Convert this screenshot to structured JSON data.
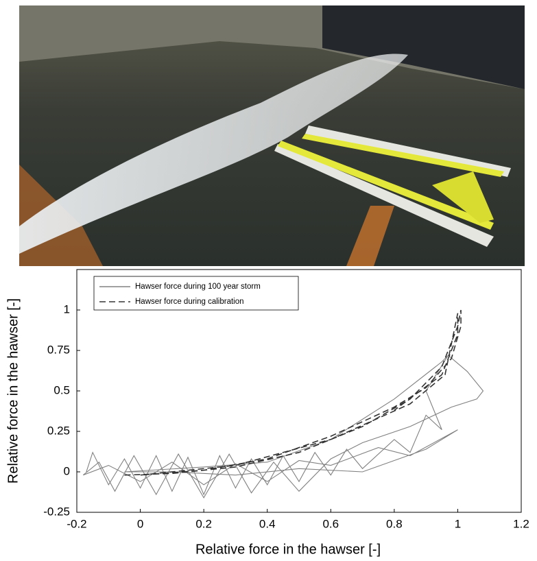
{
  "chart_data": {
    "type": "line",
    "xlabel": "Relative force in the hawser [-]",
    "ylabel": "Relative force in the hawser [-]",
    "xlim": [
      -0.2,
      1.2
    ],
    "ylim": [
      -0.25,
      1.25
    ],
    "xticks": [
      -0.2,
      0,
      0.2,
      0.4,
      0.6,
      0.8,
      1,
      1.2
    ],
    "yticks": [
      -0.25,
      0,
      0.25,
      0.5,
      0.75,
      1
    ],
    "legend": "upper left",
    "series": [
      {
        "name": "Hawser force during 100 year storm",
        "color": "#808080",
        "dash": false,
        "x": [
          -0.17,
          -0.15,
          -0.1,
          -0.05,
          0.0,
          0.05,
          0.1,
          0.15,
          0.2,
          0.25,
          0.3,
          0.35,
          0.4,
          0.45,
          0.5,
          0.55,
          0.6,
          0.65,
          0.7,
          0.8,
          0.85,
          0.9,
          0.95,
          0.9,
          0.97,
          1.03,
          1.08,
          1.06,
          0.98,
          0.85,
          0.7,
          0.6,
          0.5,
          0.42,
          0.35,
          0.28,
          0.2,
          0.12,
          0.05,
          -0.02,
          -0.08,
          -0.13,
          -0.18,
          -0.1,
          0.0,
          0.1,
          0.2,
          0.3,
          0.4,
          0.5,
          0.6,
          0.75,
          0.85,
          1.0,
          0.9,
          0.7,
          0.5,
          0.3,
          0.1,
          -0.05,
          0.2,
          0.4,
          0.6,
          0.8,
          0.95,
          0.97
        ],
        "values": [
          0.0,
          0.12,
          -0.08,
          0.08,
          -0.1,
          0.1,
          -0.12,
          0.09,
          -0.14,
          0.1,
          -0.1,
          0.08,
          -0.08,
          0.1,
          -0.06,
          0.12,
          -0.02,
          0.14,
          0.02,
          0.2,
          0.12,
          0.35,
          0.26,
          0.5,
          0.72,
          0.62,
          0.5,
          0.45,
          0.4,
          0.28,
          0.18,
          0.08,
          -0.12,
          0.06,
          -0.13,
          0.11,
          -0.16,
          0.11,
          -0.14,
          0.1,
          -0.12,
          0.06,
          -0.02,
          0.04,
          -0.06,
          0.06,
          -0.08,
          0.05,
          -0.06,
          0.07,
          0.04,
          0.15,
          0.1,
          0.26,
          0.14,
          0.0,
          0.02,
          -0.02,
          0.0,
          0.0,
          0.03,
          0.06,
          0.2,
          0.45,
          0.68,
          0.72
        ]
      },
      {
        "name": "Hawser force during calibration",
        "color": "#333333",
        "dash": true,
        "x": [
          -0.05,
          0.1,
          0.3,
          0.5,
          0.7,
          0.85,
          0.95,
          1.0,
          1.01,
          1.01,
          0.98,
          0.9,
          0.8,
          0.6,
          0.4,
          0.2,
          0.0,
          0.3,
          0.6,
          0.85,
          0.96,
          1.0,
          1.0,
          0.95,
          0.8
        ],
        "values": [
          -0.02,
          -0.01,
          0.03,
          0.12,
          0.28,
          0.45,
          0.65,
          0.9,
          1.0,
          0.9,
          0.7,
          0.52,
          0.4,
          0.22,
          0.08,
          0.01,
          -0.02,
          0.04,
          0.2,
          0.42,
          0.6,
          0.98,
          0.85,
          0.6,
          0.38
        ]
      }
    ]
  }
}
